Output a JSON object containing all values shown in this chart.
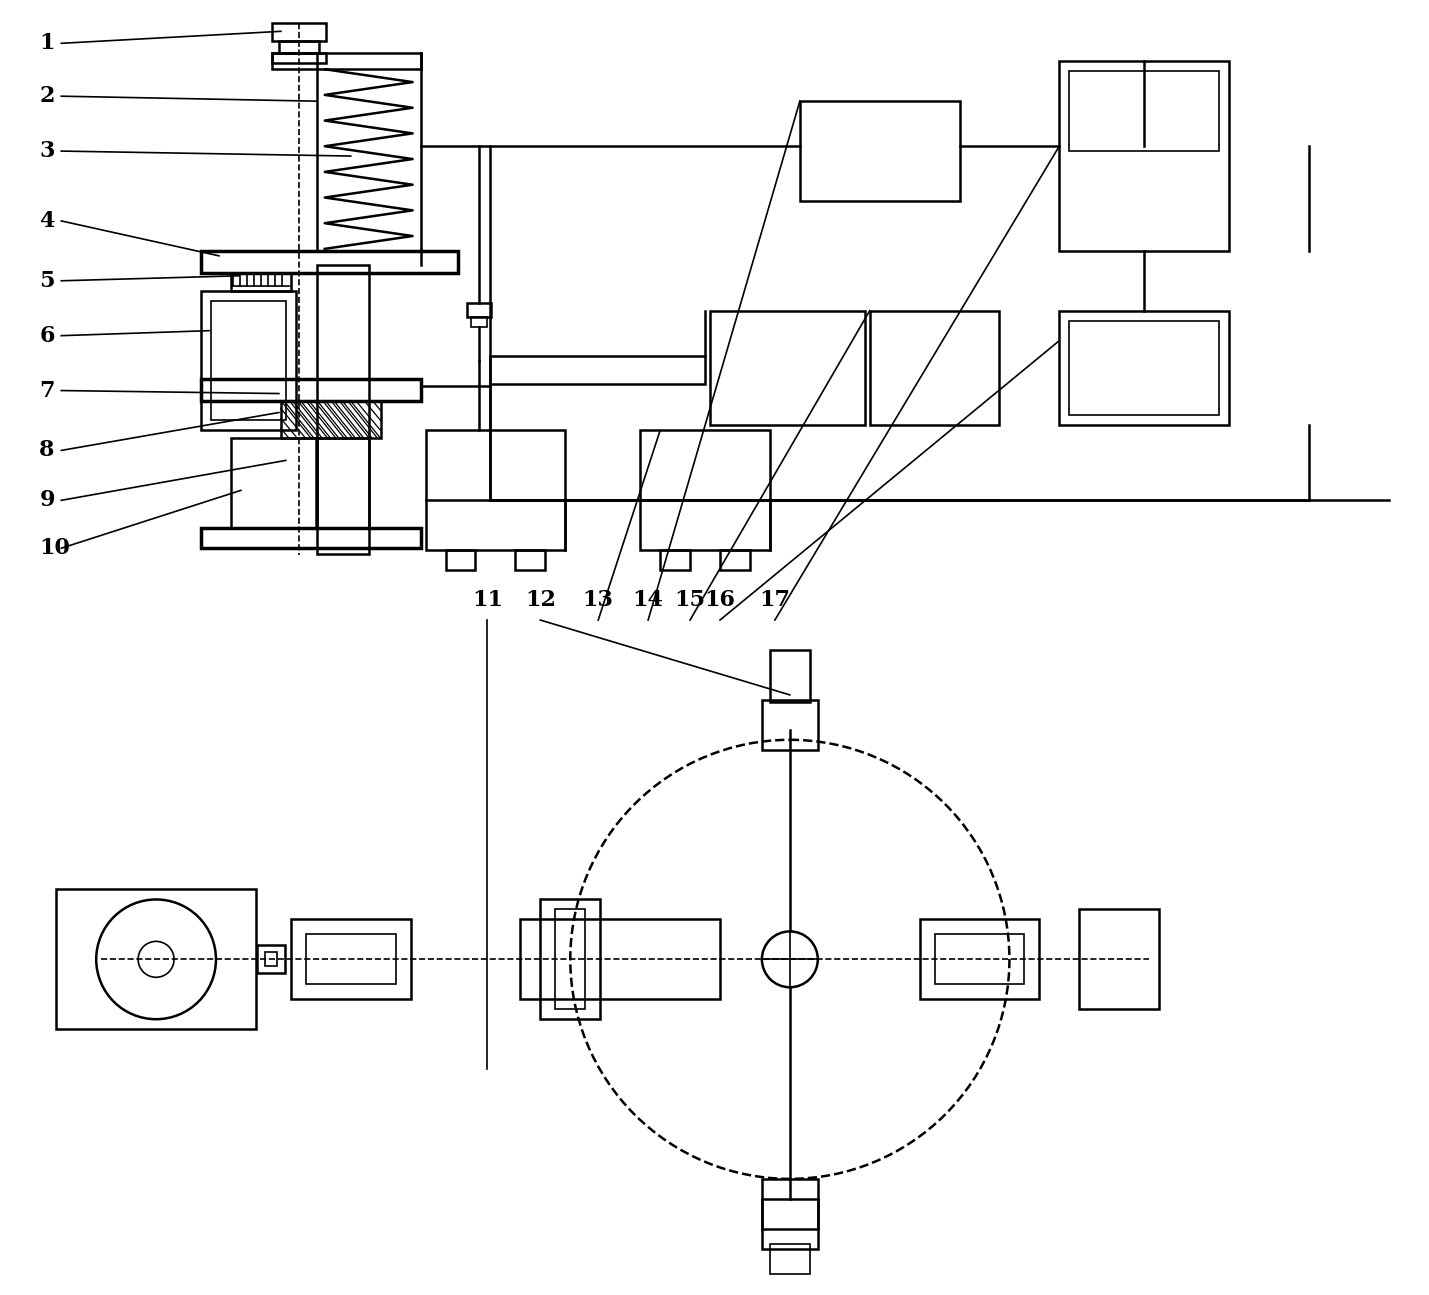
{
  "bg_color": "#ffffff",
  "line_color": "#000000",
  "fig_width": 14.29,
  "fig_height": 12.95
}
